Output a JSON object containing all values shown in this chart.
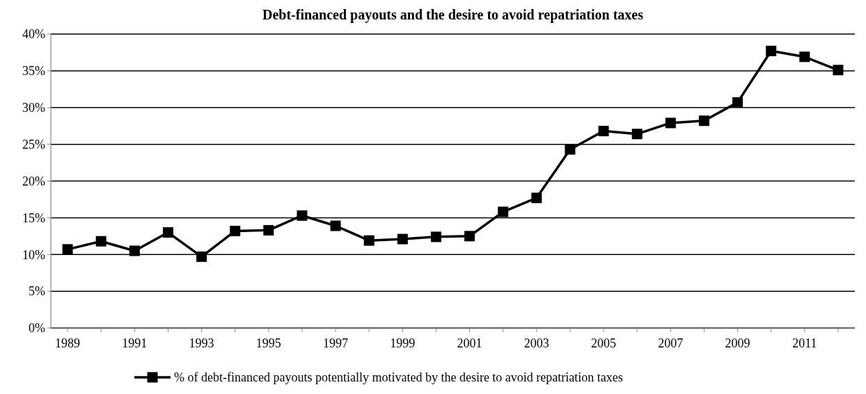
{
  "chart_data": {
    "type": "line",
    "title": "Debt-financed payouts and the desire to avoid repatriation taxes",
    "categories": [
      "1989",
      null,
      "1991",
      null,
      "1993",
      null,
      "1995",
      null,
      "1997",
      null,
      "1999",
      null,
      "2001",
      null,
      "2003",
      null,
      "2005",
      null,
      "2007",
      null,
      "2009",
      null,
      "2011",
      null
    ],
    "series": [
      {
        "name": "% of debt-financed payouts potentially motivated by the desire to avoid repatriation taxes",
        "color": "#000000",
        "values": [
          10.7,
          11.8,
          10.5,
          13.0,
          9.7,
          13.2,
          13.3,
          15.3,
          13.9,
          11.9,
          12.1,
          12.4,
          12.5,
          15.8,
          17.7,
          24.3,
          26.8,
          26.4,
          27.9,
          28.2,
          30.7,
          37.7,
          36.9,
          35.1
        ]
      }
    ],
    "ylim": [
      0,
      40
    ],
    "yticks": [
      {
        "value": 0,
        "label": "0%"
      },
      {
        "value": 5,
        "label": "5%"
      },
      {
        "value": 10,
        "label": "10%"
      },
      {
        "value": 15,
        "label": "15%"
      },
      {
        "value": 20,
        "label": "20%"
      },
      {
        "value": 25,
        "label": "25%"
      },
      {
        "value": 30,
        "label": "30%"
      },
      {
        "value": 35,
        "label": "35%"
      },
      {
        "value": 40,
        "label": "40%"
      }
    ],
    "grid": "y",
    "legend": "bottom",
    "marker": "square",
    "line_style": "solid"
  }
}
